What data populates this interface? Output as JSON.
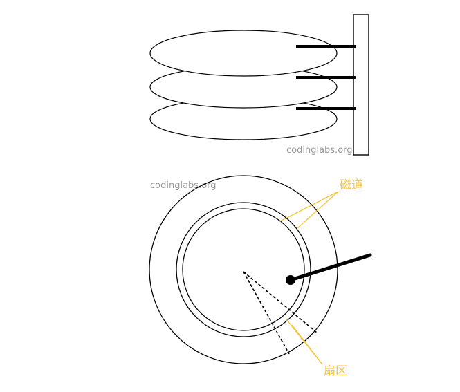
{
  "watermark_top": "codinglabs.org",
  "watermark_bottom": "codinglabs.org",
  "labels": {
    "track": "磁道",
    "sector": "扇区"
  },
  "colors": {
    "line": "#000000",
    "annotation": "#f5c542",
    "watermark": "#9a9a9a"
  }
}
